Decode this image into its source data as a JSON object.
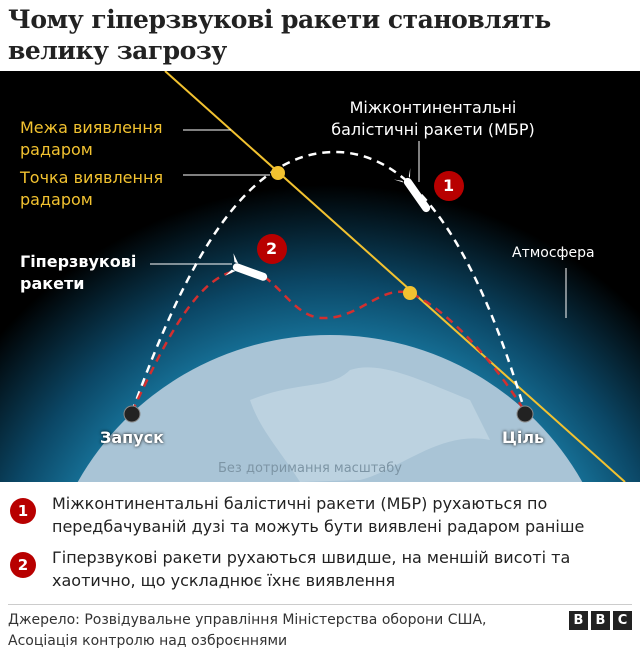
{
  "title": "Чому гіперзвукові ракети становлять велику загрозу",
  "diagram": {
    "radar_limit": "Межа виявлення радаром",
    "radar_point": "Точка виявлення радаром",
    "icbm": "Міжконтинентальні балістичні ракети (МБР)",
    "hypersonic": "Гіперзвукові ракети",
    "atmosphere": "Атмосфера",
    "launch": "Запуск",
    "target": "Ціль",
    "scale_note": "Без дотримання масштабу",
    "badge1": "1",
    "badge2": "2",
    "colors": {
      "radar": "#f2c230",
      "hypersonic_path": "#d32f2f",
      "badge": "#b80000",
      "earth": "#a9c4d6",
      "atmosphere": "#0d5a80"
    }
  },
  "legend": [
    {
      "num": "1",
      "text": "Міжконтинентальні балістичні ракети (МБР) рухаються по передбачуваній дузі та можуть бути виявлені радаром раніше"
    },
    {
      "num": "2",
      "text": "Гіперзвукові ракети рухаються швидше, на меншій висоті та хаотично, що ускладнює їхнє виявлення"
    }
  ],
  "source": "Джерело: Розвідувальне управління Міністерства оборони США, Асоціація контролю над озброєннями",
  "logo": [
    "B",
    "B",
    "C"
  ]
}
